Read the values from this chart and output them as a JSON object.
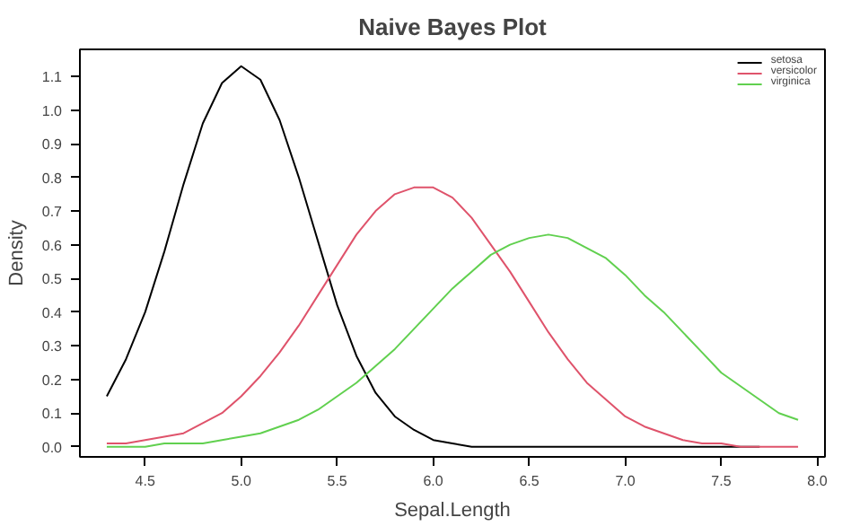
{
  "chart_data": {
    "type": "line",
    "title": "Naive Bayes Plot",
    "xlabel": "Sepal.Length",
    "ylabel": "Density",
    "x": [
      4.3,
      4.4,
      4.5,
      4.6,
      4.7,
      4.8,
      4.9,
      5.0,
      5.1,
      5.2,
      5.3,
      5.4,
      5.5,
      5.6,
      5.7,
      5.8,
      5.9,
      6.0,
      6.1,
      6.2,
      6.3,
      6.4,
      6.5,
      6.6,
      6.7,
      6.8,
      6.9,
      7.0,
      7.1,
      7.2,
      7.3,
      7.4,
      7.5,
      7.6,
      7.7,
      7.8,
      7.9
    ],
    "series": [
      {
        "name": "setosa",
        "color": "#000000",
        "x": [
          4.3,
          4.4,
          4.5,
          4.6,
          4.7,
          4.8,
          4.9,
          5.0,
          5.1,
          5.2,
          5.3,
          5.4,
          5.5,
          5.6,
          5.7,
          5.8,
          5.9,
          6.0,
          6.1,
          6.2,
          6.3,
          6.4,
          6.5,
          6.6,
          6.7,
          6.8,
          6.9,
          7.0,
          7.1,
          7.2,
          7.3,
          7.4,
          7.5,
          7.6,
          7.7
        ],
        "values": [
          0.15,
          0.26,
          0.4,
          0.58,
          0.78,
          0.96,
          1.08,
          1.13,
          1.09,
          0.97,
          0.8,
          0.61,
          0.42,
          0.27,
          0.16,
          0.09,
          0.05,
          0.02,
          0.01,
          0.0,
          0.0,
          0.0,
          0.0,
          0.0,
          0.0,
          0.0,
          0.0,
          0.0,
          0.0,
          0.0,
          0.0,
          0.0,
          0.0,
          0.0,
          0.0
        ]
      },
      {
        "name": "versicolor",
        "color": "#df536b",
        "values": [
          0.01,
          0.01,
          0.02,
          0.03,
          0.04,
          0.07,
          0.1,
          0.15,
          0.21,
          0.28,
          0.36,
          0.45,
          0.54,
          0.63,
          0.7,
          0.75,
          0.77,
          0.77,
          0.74,
          0.68,
          0.6,
          0.52,
          0.43,
          0.34,
          0.26,
          0.19,
          0.14,
          0.09,
          0.06,
          0.04,
          0.02,
          0.01,
          0.01,
          0.0,
          0.0,
          0.0,
          0.0
        ]
      },
      {
        "name": "virginica",
        "color": "#61d04f",
        "values": [
          0.0,
          0.0,
          0.0,
          0.01,
          0.01,
          0.01,
          0.02,
          0.03,
          0.04,
          0.06,
          0.08,
          0.11,
          0.15,
          0.19,
          0.24,
          0.29,
          0.35,
          0.41,
          0.47,
          0.52,
          0.57,
          0.6,
          0.62,
          0.63,
          0.62,
          0.59,
          0.56,
          0.51,
          0.45,
          0.4,
          0.34,
          0.28,
          0.22,
          0.18,
          0.14,
          0.1,
          0.08
        ]
      }
    ],
    "xlim": [
      4.16,
      8.04
    ],
    "ylim": [
      -0.03,
      1.18
    ],
    "xticks": [
      {
        "value": 4.5,
        "label": "4.5"
      },
      {
        "value": 5,
        "label": "5.0"
      },
      {
        "value": 5.5,
        "label": "5.5"
      },
      {
        "value": 6,
        "label": "6.0"
      },
      {
        "value": 6.5,
        "label": "6.5"
      },
      {
        "value": 7,
        "label": "7.0"
      },
      {
        "value": 7.5,
        "label": "7.5"
      },
      {
        "value": 8,
        "label": "8.0"
      }
    ],
    "yticks": [
      {
        "value": 0,
        "label": "0.0"
      },
      0.1,
      0.2,
      0.3,
      0.4,
      0.5,
      0.6,
      0.7,
      0.8,
      0.9,
      {
        "value": 1,
        "label": "1.0"
      },
      1.1
    ],
    "grid": false,
    "legend": "top right",
    "line_style": "solid",
    "marker": "none"
  }
}
